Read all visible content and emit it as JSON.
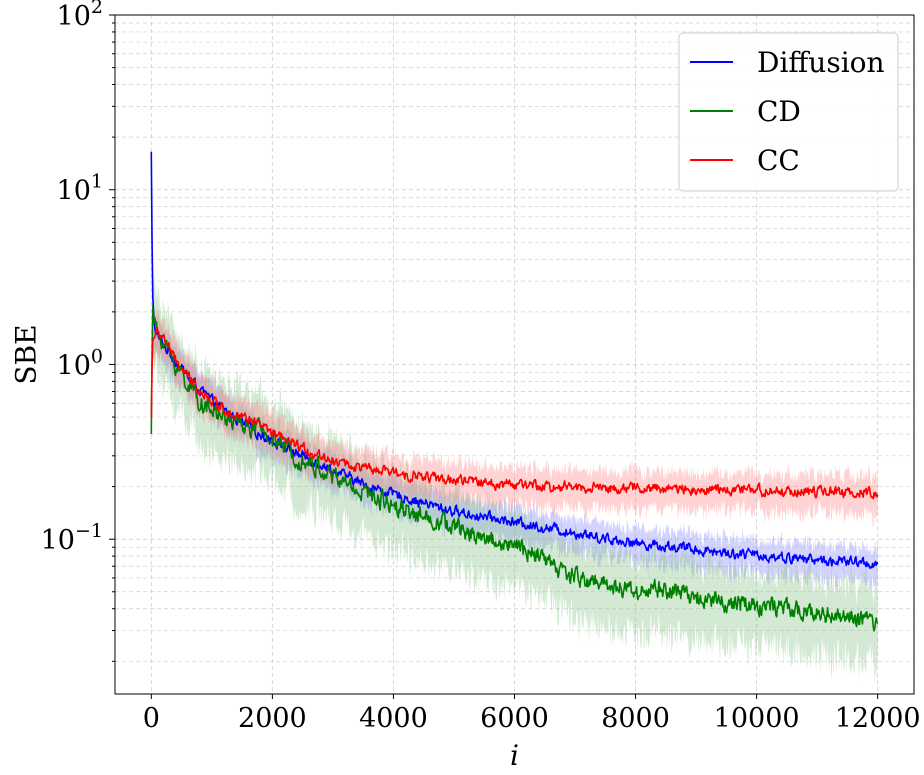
{
  "chart_data": {
    "type": "line",
    "title": "",
    "xlabel": "i",
    "ylabel": "SBE",
    "yscale": "log",
    "xlim": [
      -600,
      12600
    ],
    "ylim": [
      0.013,
      100
    ],
    "x_ticks": [
      0,
      2000,
      4000,
      6000,
      8000,
      10000,
      12000
    ],
    "x_tick_labels": [
      "0",
      "2000",
      "4000",
      "6000",
      "8000",
      "10000",
      "12000"
    ],
    "y_ticks": [
      0.1,
      1,
      10,
      100
    ],
    "y_tick_labels": [
      {
        "base": "10",
        "exp": "−1"
      },
      {
        "base": "10",
        "exp": "0"
      },
      {
        "base": "10",
        "exp": "1"
      },
      {
        "base": "10",
        "exp": "2"
      }
    ],
    "grid": true,
    "legend_position": "top-right",
    "series": [
      {
        "name": "Diffusion",
        "color": "#0000ff",
        "band_color": "#8080ff",
        "x": [
          0,
          20,
          60,
          100,
          200,
          400,
          600,
          800,
          1000,
          1200,
          1500,
          1800,
          2000,
          2400,
          2800,
          3200,
          3600,
          4000,
          4400,
          4800,
          5200,
          5600,
          6000,
          6400,
          6800,
          7200,
          7600,
          8000,
          8400,
          8800,
          9200,
          9600,
          10000,
          10400,
          10800,
          11200,
          11600,
          12000
        ],
        "values": [
          16.5,
          2.4,
          1.6,
          1.45,
          1.3,
          1.05,
          0.85,
          0.72,
          0.62,
          0.55,
          0.46,
          0.4,
          0.37,
          0.31,
          0.27,
          0.23,
          0.2,
          0.18,
          0.165,
          0.15,
          0.14,
          0.132,
          0.125,
          0.118,
          0.112,
          0.106,
          0.1,
          0.095,
          0.092,
          0.089,
          0.086,
          0.083,
          0.081,
          0.079,
          0.077,
          0.075,
          0.074,
          0.072
        ]
      },
      {
        "name": "CD",
        "color": "#008000",
        "band_color": "#80c080",
        "x": [
          0,
          20,
          60,
          100,
          200,
          400,
          600,
          800,
          1000,
          1200,
          1500,
          1800,
          2000,
          2400,
          2800,
          3200,
          3600,
          4000,
          4400,
          4800,
          5200,
          5600,
          6000,
          6400,
          6800,
          7200,
          7600,
          8000,
          8400,
          8800,
          9200,
          9600,
          10000,
          10400,
          10800,
          11200,
          11600,
          12000
        ],
        "values": [
          0.4,
          2.0,
          1.7,
          1.55,
          1.35,
          1.0,
          0.78,
          0.62,
          0.54,
          0.5,
          0.45,
          0.42,
          0.38,
          0.3,
          0.25,
          0.21,
          0.18,
          0.16,
          0.14,
          0.125,
          0.11,
          0.1,
          0.09,
          0.08,
          0.065,
          0.058,
          0.055,
          0.05,
          0.052,
          0.048,
          0.046,
          0.043,
          0.042,
          0.04,
          0.038,
          0.037,
          0.035,
          0.033
        ]
      },
      {
        "name": "CC",
        "color": "#ff0000",
        "band_color": "#ff8080",
        "x": [
          0,
          20,
          60,
          100,
          200,
          400,
          600,
          800,
          1000,
          1200,
          1500,
          1800,
          2000,
          2400,
          2800,
          3200,
          3600,
          4000,
          4400,
          4800,
          5200,
          5600,
          6000,
          6400,
          6800,
          7200,
          7600,
          8000,
          8400,
          8800,
          9200,
          9600,
          10000,
          10400,
          10800,
          11200,
          11600,
          12000
        ],
        "values": [
          0.5,
          1.4,
          1.5,
          1.5,
          1.45,
          1.05,
          0.85,
          0.72,
          0.62,
          0.56,
          0.5,
          0.45,
          0.4,
          0.34,
          0.3,
          0.27,
          0.25,
          0.24,
          0.23,
          0.22,
          0.215,
          0.21,
          0.205,
          0.2,
          0.2,
          0.198,
          0.196,
          0.195,
          0.194,
          0.193,
          0.192,
          0.19,
          0.19,
          0.188,
          0.187,
          0.186,
          0.185,
          0.185
        ]
      }
    ]
  }
}
